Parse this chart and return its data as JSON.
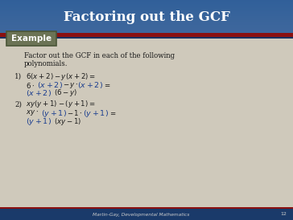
{
  "title": "Factoring out the GCF",
  "title_bg_top": "#3A6AA8",
  "title_bg_bottom": "#1E3F6E",
  "title_color": "#FFFFFF",
  "slide_bg": "#CFC9BB",
  "example_label": "Example",
  "example_bg": "#6B7355",
  "example_border": "#4a5538",
  "example_text_color": "#FFFFFF",
  "body_text_color": "#1a1a1a",
  "blue_color": "#1A3D8F",
  "intro_line1": "Factor out the GCF in each of the following",
  "intro_line2": "polynomials.",
  "footer": "Martin-Gay, Developmental Mathematics",
  "footer_color": "#CCCCCC",
  "footer_bg": "#1a3a6a",
  "footer_red": "#8B1010",
  "page_num": "12",
  "red_line_color": "#8B1010",
  "dark_line_color": "#1a3060"
}
